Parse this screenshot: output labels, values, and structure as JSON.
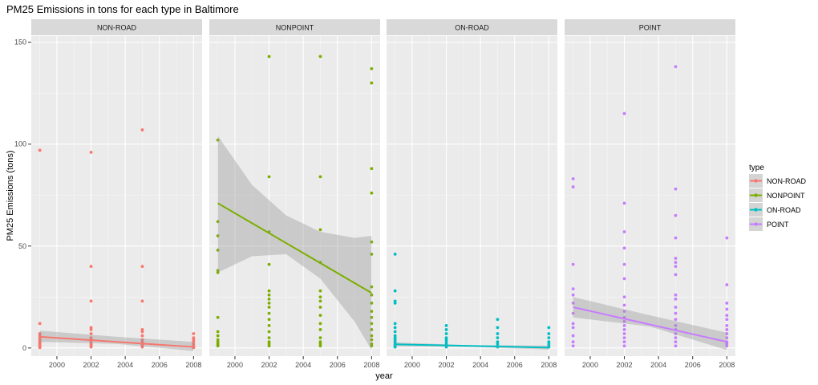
{
  "chart_data": {
    "type": "scatter",
    "title": "PM25 Emissions in tons for each type in Baltimore",
    "xlabel": "year",
    "ylabel": "PM25 Emissions (tons)",
    "xlim": [
      1998.5,
      2008.5
    ],
    "ylim": [
      -4,
      153
    ],
    "x_ticks": [
      2000,
      2002,
      2004,
      2006,
      2008
    ],
    "y_ticks": [
      0,
      50,
      100,
      150
    ],
    "grid": true,
    "legend": {
      "title": "type",
      "position": "right",
      "entries": [
        "NON-ROAD",
        "NONPOINT",
        "ON-ROAD",
        "POINT"
      ]
    },
    "panels": [
      {
        "name": "NON-ROAD",
        "color": "#F8766D",
        "points": [
          [
            1999,
            97
          ],
          [
            1999,
            12
          ],
          [
            1999,
            7
          ],
          [
            1999,
            6
          ],
          [
            1999,
            5
          ],
          [
            1999,
            4
          ],
          [
            1999,
            3
          ],
          [
            1999,
            2.5
          ],
          [
            1999,
            2
          ],
          [
            1999,
            1.5
          ],
          [
            1999,
            1
          ],
          [
            1999,
            0.5
          ],
          [
            1999,
            0.2
          ],
          [
            2002,
            96
          ],
          [
            2002,
            40
          ],
          [
            2002,
            23
          ],
          [
            2002,
            10
          ],
          [
            2002,
            9
          ],
          [
            2002,
            7
          ],
          [
            2002,
            5
          ],
          [
            2002,
            4
          ],
          [
            2002,
            3
          ],
          [
            2002,
            2
          ],
          [
            2002,
            1.5
          ],
          [
            2002,
            1
          ],
          [
            2002,
            0.5
          ],
          [
            2005,
            107
          ],
          [
            2005,
            40
          ],
          [
            2005,
            23
          ],
          [
            2005,
            9
          ],
          [
            2005,
            8
          ],
          [
            2005,
            6
          ],
          [
            2005,
            4
          ],
          [
            2005,
            3
          ],
          [
            2005,
            2
          ],
          [
            2005,
            1.5
          ],
          [
            2005,
            1
          ],
          [
            2005,
            0.5
          ],
          [
            2008,
            7
          ],
          [
            2008,
            5
          ],
          [
            2008,
            4
          ],
          [
            2008,
            3
          ],
          [
            2008,
            2
          ],
          [
            2008,
            1.5
          ],
          [
            2008,
            1
          ],
          [
            2008,
            0.5
          ],
          [
            2008,
            0.2
          ]
        ],
        "trend": {
          "x": [
            1999,
            2008
          ],
          "y": [
            5.5,
            0.5
          ]
        },
        "band": {
          "x": [
            1999,
            2003.5,
            2008
          ],
          "lower": [
            3,
            2,
            -1.5
          ],
          "upper": [
            8.5,
            5.5,
            3
          ]
        }
      },
      {
        "name": "NONPOINT",
        "color": "#7CAE00",
        "points": [
          [
            1999,
            102
          ],
          [
            1999,
            62
          ],
          [
            1999,
            55
          ],
          [
            1999,
            48
          ],
          [
            1999,
            38
          ],
          [
            1999,
            37
          ],
          [
            1999,
            15
          ],
          [
            1999,
            8
          ],
          [
            1999,
            6
          ],
          [
            1999,
            4
          ],
          [
            1999,
            3
          ],
          [
            1999,
            2
          ],
          [
            1999,
            1.5
          ],
          [
            1999,
            1
          ],
          [
            2002,
            143
          ],
          [
            2002,
            84
          ],
          [
            2002,
            57
          ],
          [
            2002,
            41
          ],
          [
            2002,
            28
          ],
          [
            2002,
            26
          ],
          [
            2002,
            24
          ],
          [
            2002,
            22
          ],
          [
            2002,
            20
          ],
          [
            2002,
            17
          ],
          [
            2002,
            14
          ],
          [
            2002,
            11
          ],
          [
            2002,
            8
          ],
          [
            2002,
            5
          ],
          [
            2002,
            3
          ],
          [
            2002,
            2
          ],
          [
            2002,
            1
          ],
          [
            2005,
            143
          ],
          [
            2005,
            84
          ],
          [
            2005,
            58
          ],
          [
            2005,
            42
          ],
          [
            2005,
            28
          ],
          [
            2005,
            25
          ],
          [
            2005,
            23
          ],
          [
            2005,
            20
          ],
          [
            2005,
            16
          ],
          [
            2005,
            12
          ],
          [
            2005,
            9
          ],
          [
            2005,
            5
          ],
          [
            2005,
            3
          ],
          [
            2005,
            2
          ],
          [
            2005,
            1
          ],
          [
            2008,
            137
          ],
          [
            2008,
            130
          ],
          [
            2008,
            88
          ],
          [
            2008,
            76
          ],
          [
            2008,
            52
          ],
          [
            2008,
            46
          ],
          [
            2008,
            30
          ],
          [
            2008,
            26
          ],
          [
            2008,
            22
          ],
          [
            2008,
            18
          ],
          [
            2008,
            15
          ],
          [
            2008,
            12
          ],
          [
            2008,
            9
          ],
          [
            2008,
            6
          ],
          [
            2008,
            4
          ],
          [
            2008,
            2
          ],
          [
            2008,
            1
          ]
        ],
        "trend": {
          "x": [
            1999,
            2008
          ],
          "y": [
            71,
            27
          ]
        },
        "band": {
          "x": [
            1999,
            2001,
            2003,
            2005,
            2007,
            2008
          ],
          "lower": [
            37,
            45,
            46,
            34,
            13,
            -1
          ],
          "upper": [
            104,
            80,
            65,
            57,
            54,
            55
          ]
        }
      },
      {
        "name": "ON-ROAD",
        "color": "#00BFC4",
        "points": [
          [
            1999,
            46
          ],
          [
            1999,
            28
          ],
          [
            1999,
            23
          ],
          [
            1999,
            22
          ],
          [
            1999,
            12
          ],
          [
            1999,
            10
          ],
          [
            1999,
            8
          ],
          [
            1999,
            6
          ],
          [
            1999,
            5
          ],
          [
            1999,
            4
          ],
          [
            1999,
            3
          ],
          [
            1999,
            2
          ],
          [
            1999,
            1.5
          ],
          [
            1999,
            1
          ],
          [
            1999,
            0.5
          ],
          [
            2002,
            11
          ],
          [
            2002,
            9
          ],
          [
            2002,
            7
          ],
          [
            2002,
            5
          ],
          [
            2002,
            4
          ],
          [
            2002,
            3
          ],
          [
            2002,
            2
          ],
          [
            2002,
            1
          ],
          [
            2002,
            0.5
          ],
          [
            2005,
            14
          ],
          [
            2005,
            10
          ],
          [
            2005,
            7
          ],
          [
            2005,
            5
          ],
          [
            2005,
            3
          ],
          [
            2005,
            2
          ],
          [
            2005,
            1
          ],
          [
            2005,
            0.5
          ],
          [
            2008,
            10
          ],
          [
            2008,
            7
          ],
          [
            2008,
            5
          ],
          [
            2008,
            3
          ],
          [
            2008,
            2
          ],
          [
            2008,
            1
          ],
          [
            2008,
            0.5
          ]
        ],
        "trend": {
          "x": [
            1999,
            2008
          ],
          "y": [
            1.8,
            0.2
          ]
        },
        "band": {
          "x": [
            1999,
            2003.5,
            2008
          ],
          "lower": [
            0.8,
            0.5,
            -0.8
          ],
          "upper": [
            2.8,
            1.3,
            1.2
          ]
        }
      },
      {
        "name": "POINT",
        "color": "#C77CFF",
        "points": [
          [
            1999,
            83
          ],
          [
            1999,
            79
          ],
          [
            1999,
            41
          ],
          [
            1999,
            29
          ],
          [
            1999,
            26
          ],
          [
            1999,
            22
          ],
          [
            1999,
            17
          ],
          [
            1999,
            12
          ],
          [
            1999,
            10
          ],
          [
            1999,
            6
          ],
          [
            1999,
            3
          ],
          [
            1999,
            1
          ],
          [
            2002,
            115
          ],
          [
            2002,
            71
          ],
          [
            2002,
            57
          ],
          [
            2002,
            49
          ],
          [
            2002,
            41
          ],
          [
            2002,
            34
          ],
          [
            2002,
            25
          ],
          [
            2002,
            21
          ],
          [
            2002,
            18
          ],
          [
            2002,
            15
          ],
          [
            2002,
            13
          ],
          [
            2002,
            11
          ],
          [
            2002,
            9
          ],
          [
            2002,
            7
          ],
          [
            2002,
            5
          ],
          [
            2002,
            3
          ],
          [
            2002,
            1
          ],
          [
            2005,
            138
          ],
          [
            2005,
            78
          ],
          [
            2005,
            65
          ],
          [
            2005,
            54
          ],
          [
            2005,
            44
          ],
          [
            2005,
            42
          ],
          [
            2005,
            40
          ],
          [
            2005,
            36
          ],
          [
            2005,
            26
          ],
          [
            2005,
            24
          ],
          [
            2005,
            20
          ],
          [
            2005,
            17
          ],
          [
            2005,
            14
          ],
          [
            2005,
            11
          ],
          [
            2005,
            9
          ],
          [
            2005,
            7
          ],
          [
            2005,
            5
          ],
          [
            2005,
            3
          ],
          [
            2005,
            1
          ],
          [
            2008,
            54
          ],
          [
            2008,
            31
          ],
          [
            2008,
            22
          ],
          [
            2008,
            19
          ],
          [
            2008,
            16
          ],
          [
            2008,
            14
          ],
          [
            2008,
            11
          ],
          [
            2008,
            9
          ],
          [
            2008,
            7
          ],
          [
            2008,
            5
          ],
          [
            2008,
            3
          ],
          [
            2008,
            2
          ],
          [
            2008,
            1
          ]
        ],
        "trend": {
          "x": [
            1999,
            2008
          ],
          "y": [
            20,
            3
          ]
        },
        "band": {
          "x": [
            1999,
            2003.5,
            2008
          ],
          "lower": [
            15,
            10.5,
            -1
          ],
          "upper": [
            25,
            16,
            7.5
          ]
        }
      }
    ]
  }
}
